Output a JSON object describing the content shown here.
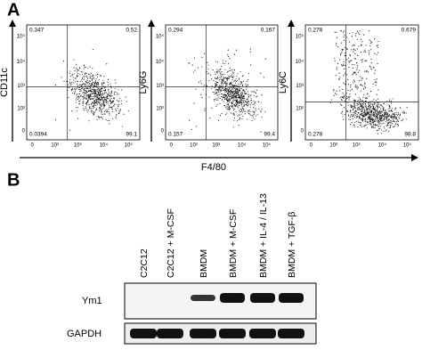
{
  "panel_a": {
    "label": "A",
    "x_axis_label": "F4/80",
    "x_ticks": [
      "0",
      "10²",
      "10³",
      "10⁴",
      "10⁵"
    ],
    "y_ticks": [
      "0",
      "10²",
      "10³",
      "10⁴",
      "10⁵"
    ],
    "plots": [
      {
        "y_axis_label": "CD11c",
        "quadrants": [
          "0.347",
          "0.52",
          "0.0394",
          "99.1"
        ]
      },
      {
        "y_axis_label": "Ly6G",
        "quadrants": [
          "0.294",
          "0.167",
          "0.157",
          "99.4"
        ]
      },
      {
        "y_axis_label": "Ly6C",
        "quadrants": [
          "0.278",
          "0.679",
          "0.278",
          "98.8"
        ]
      }
    ]
  },
  "panel_b": {
    "label": "B",
    "lanes": [
      "C2C12",
      "C2C12 + M-CSF",
      "BMDM",
      "BMDM + M-CSF",
      "BMDM + IL-4 / IL-13",
      "BMDM + TGF-β"
    ],
    "blots": [
      "Ym1",
      "GAPDH"
    ]
  }
}
